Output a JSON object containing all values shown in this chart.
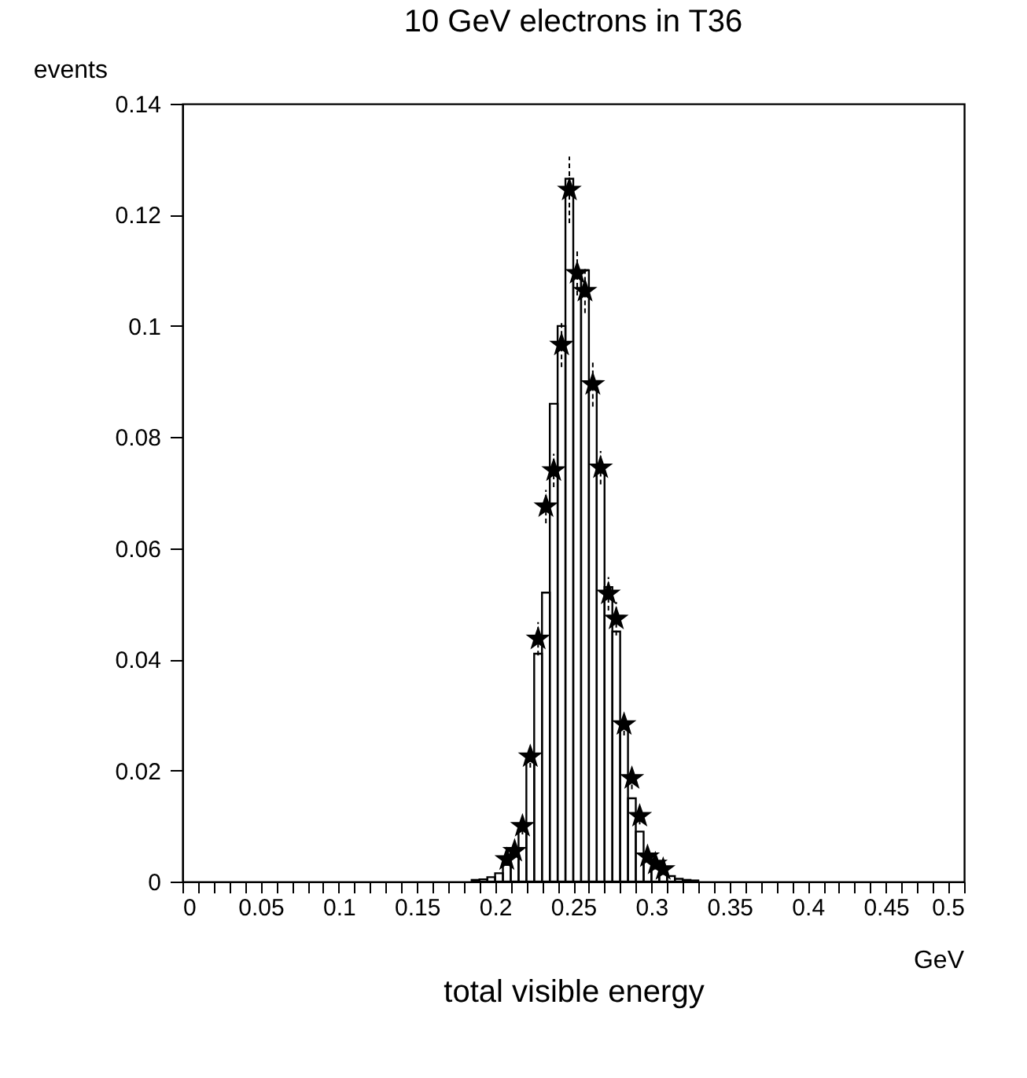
{
  "chart_data": {
    "type": "histogram",
    "title": "10 GeV electrons  in T36",
    "xlabel": "total visible energy",
    "ylabel": "events",
    "annotations": [
      "GeV"
    ],
    "xlim": [
      0,
      0.5
    ],
    "ylim": [
      0,
      0.14
    ],
    "xticks": [
      0,
      {
        "value": 0.01,
        "label": null
      },
      {
        "value": 0.02,
        "label": null
      },
      {
        "value": 0.03,
        "label": null
      },
      {
        "value": 0.04,
        "label": null
      },
      0.05,
      {
        "value": 0.06,
        "label": null
      },
      {
        "value": 0.07,
        "label": null
      },
      {
        "value": 0.08,
        "label": null
      },
      {
        "value": 0.09,
        "label": null
      },
      0.1,
      {
        "value": 0.11,
        "label": null
      },
      {
        "value": 0.12,
        "label": null
      },
      {
        "value": 0.13,
        "label": null
      },
      {
        "value": 0.14,
        "label": null
      },
      0.15,
      {
        "value": 0.16,
        "label": null
      },
      {
        "value": 0.17,
        "label": null
      },
      {
        "value": 0.18,
        "label": null
      },
      {
        "value": 0.19,
        "label": null
      },
      0.2,
      {
        "value": 0.21,
        "label": null
      },
      {
        "value": 0.22,
        "label": null
      },
      {
        "value": 0.23,
        "label": null
      },
      {
        "value": 0.24,
        "label": null
      },
      0.25,
      {
        "value": 0.26,
        "label": null
      },
      {
        "value": 0.27,
        "label": null
      },
      {
        "value": 0.28,
        "label": null
      },
      {
        "value": 0.29,
        "label": null
      },
      0.3,
      {
        "value": 0.31,
        "label": null
      },
      {
        "value": 0.32,
        "label": null
      },
      {
        "value": 0.33,
        "label": null
      },
      {
        "value": 0.34,
        "label": null
      },
      0.35,
      {
        "value": 0.36,
        "label": null
      },
      {
        "value": 0.37,
        "label": null
      },
      {
        "value": 0.38,
        "label": null
      },
      {
        "value": 0.39,
        "label": null
      },
      0.4,
      {
        "value": 0.41,
        "label": null
      },
      {
        "value": 0.42,
        "label": null
      },
      {
        "value": 0.43,
        "label": null
      },
      {
        "value": 0.44,
        "label": null
      },
      0.45,
      {
        "value": 0.46,
        "label": null
      },
      {
        "value": 0.47,
        "label": null
      },
      {
        "value": 0.48,
        "label": null
      },
      {
        "value": 0.49,
        "label": null
      },
      0.5
    ],
    "yticks": [
      0,
      0.02,
      0.04,
      0.06,
      0.08,
      0.1,
      0.12,
      0.14
    ],
    "series": [
      {
        "type": "histogram",
        "color": "#000000",
        "bins": [
          0.185,
          0.19,
          0.195,
          0.2,
          0.205,
          0.21,
          0.215,
          0.22,
          0.225,
          0.23,
          0.235,
          0.24,
          0.245,
          0.25,
          0.255,
          0.26,
          0.265,
          0.27,
          0.275,
          0.28,
          0.285,
          0.29,
          0.295,
          0.3,
          0.305,
          0.31,
          0.315,
          0.32,
          0.325,
          0.33
        ],
        "values": [
          0.0003,
          0.0004,
          0.0008,
          0.0015,
          0.003,
          0.006,
          0.0095,
          0.022,
          0.041,
          0.052,
          0.086,
          0.1,
          0.1265,
          0.1095,
          0.11,
          0.09,
          0.075,
          0.053,
          0.045,
          0.028,
          0.015,
          0.009,
          0.004,
          0.0025,
          0.0015,
          0.001,
          0.0005,
          0.0003,
          0.0002
        ]
      },
      {
        "type": "scatter",
        "color": "#000000",
        "marker": "star",
        "x": [
          0.2075,
          0.2125,
          0.2175,
          0.2225,
          0.2275,
          0.2325,
          0.2375,
          0.2425,
          0.2475,
          0.2525,
          0.2575,
          0.2625,
          0.2675,
          0.2725,
          0.2775,
          0.2825,
          0.2875,
          0.2925,
          0.2975,
          0.3025,
          0.3075
        ],
        "values": [
          0.004,
          0.0055,
          0.01,
          0.0225,
          0.0437,
          0.0675,
          0.074,
          0.0966,
          0.1245,
          0.1095,
          0.1063,
          0.0895,
          0.0745,
          0.0518,
          0.0473,
          0.0283,
          0.0186,
          0.0118,
          0.0045,
          0.0032,
          0.0022
        ],
        "errors": [
          0.001,
          0.001,
          0.0015,
          0.002,
          0.003,
          0.003,
          0.003,
          0.004,
          0.006,
          0.004,
          0.004,
          0.004,
          0.003,
          0.003,
          0.003,
          0.002,
          0.002,
          0.0015,
          0.001,
          0.001,
          0.001
        ]
      }
    ]
  }
}
